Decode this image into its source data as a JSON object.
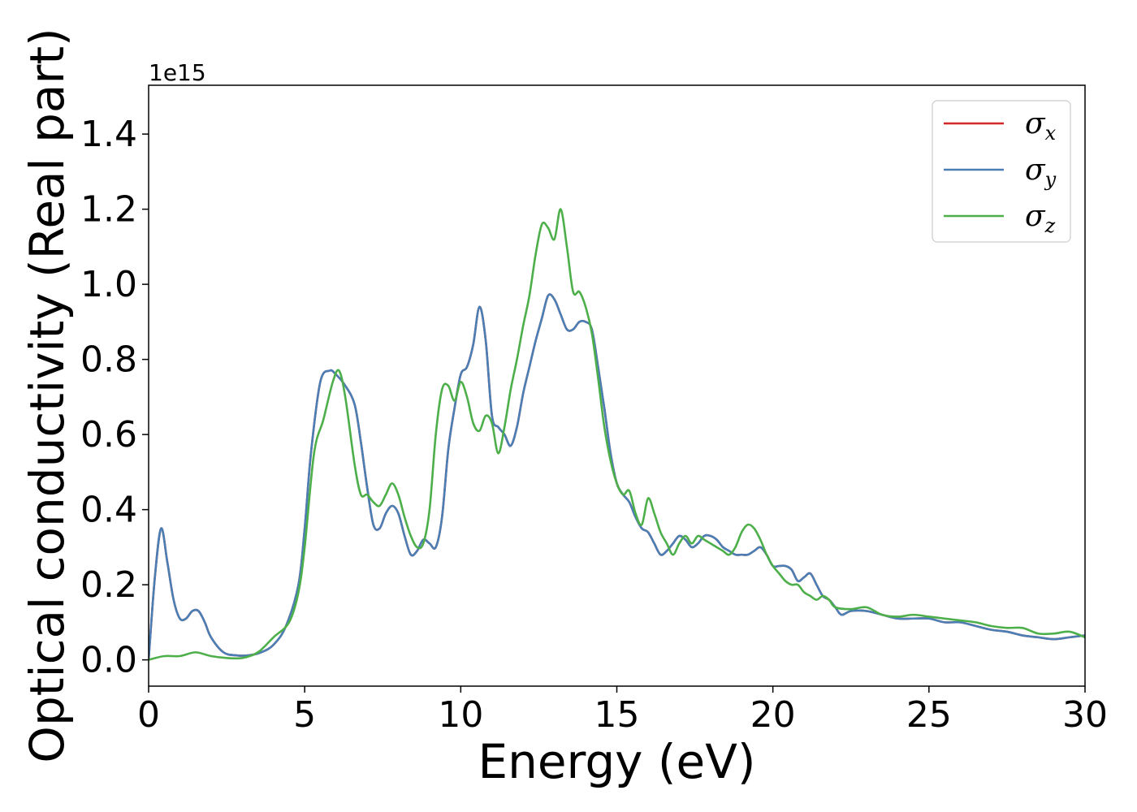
{
  "chart_data": {
    "type": "line",
    "title": "",
    "xlabel": "Energy (eV)",
    "ylabel": "Optical conductivity (Real part)",
    "y_offset_label": "1e15",
    "xlim": [
      0,
      30
    ],
    "ylim": [
      -0.07,
      1.53
    ],
    "x_ticks": [
      0,
      5,
      10,
      15,
      20,
      25,
      30
    ],
    "y_ticks": [
      0.0,
      0.2,
      0.4,
      0.6,
      0.8,
      1.0,
      1.2,
      1.4
    ],
    "x_tick_labels": [
      "0",
      "5",
      "10",
      "15",
      "20",
      "25",
      "30"
    ],
    "y_tick_labels": [
      "0.0",
      "0.2",
      "0.4",
      "0.6",
      "0.8",
      "1.0",
      "1.2",
      "1.4"
    ],
    "grid": false,
    "legend_position": "top-right",
    "series": [
      {
        "name": "σx",
        "legend_symbol": "σ",
        "legend_sub": "x",
        "color": "#d62728",
        "x": [
          0,
          0.2,
          0.4,
          0.6,
          0.8,
          1.0,
          1.2,
          1.4,
          1.6,
          1.8,
          2.0,
          2.4,
          2.8,
          3.2,
          3.6,
          4.0,
          4.4,
          4.8,
          5.0,
          5.2,
          5.5,
          5.8,
          6.0,
          6.3,
          6.6,
          6.8,
          7.0,
          7.2,
          7.4,
          7.6,
          7.8,
          8.0,
          8.2,
          8.4,
          8.6,
          8.8,
          9.0,
          9.2,
          9.4,
          9.6,
          9.8,
          10.0,
          10.2,
          10.4,
          10.6,
          10.8,
          11.0,
          11.2,
          11.4,
          11.6,
          11.8,
          12.0,
          12.2,
          12.4,
          12.6,
          12.8,
          13.0,
          13.2,
          13.4,
          13.6,
          13.8,
          14.0,
          14.2,
          14.4,
          14.6,
          14.8,
          15.0,
          15.2,
          15.4,
          15.6,
          15.8,
          16.0,
          16.2,
          16.4,
          16.6,
          16.8,
          17.0,
          17.2,
          17.4,
          17.6,
          17.8,
          18.0,
          18.2,
          18.4,
          18.6,
          18.8,
          19.0,
          19.2,
          19.4,
          19.6,
          19.8,
          20.0,
          20.2,
          20.4,
          20.6,
          20.8,
          21.0,
          21.2,
          21.4,
          21.6,
          21.8,
          22.0,
          22.2,
          22.5,
          23.0,
          23.5,
          24.0,
          24.5,
          25.0,
          25.5,
          26.0,
          26.5,
          27.0,
          27.5,
          28.0,
          28.5,
          29.0,
          29.5,
          30.0
        ],
        "y": [
          0.0,
          0.22,
          0.35,
          0.26,
          0.16,
          0.11,
          0.11,
          0.13,
          0.13,
          0.1,
          0.06,
          0.02,
          0.012,
          0.012,
          0.02,
          0.04,
          0.09,
          0.2,
          0.35,
          0.55,
          0.74,
          0.77,
          0.76,
          0.73,
          0.68,
          0.58,
          0.46,
          0.36,
          0.35,
          0.39,
          0.41,
          0.39,
          0.33,
          0.28,
          0.29,
          0.32,
          0.31,
          0.3,
          0.38,
          0.56,
          0.67,
          0.76,
          0.78,
          0.84,
          0.94,
          0.85,
          0.65,
          0.62,
          0.6,
          0.57,
          0.62,
          0.71,
          0.78,
          0.85,
          0.91,
          0.97,
          0.96,
          0.92,
          0.88,
          0.88,
          0.9,
          0.9,
          0.88,
          0.78,
          0.67,
          0.55,
          0.47,
          0.44,
          0.42,
          0.38,
          0.35,
          0.34,
          0.31,
          0.28,
          0.29,
          0.31,
          0.33,
          0.32,
          0.3,
          0.31,
          0.33,
          0.33,
          0.32,
          0.3,
          0.29,
          0.28,
          0.28,
          0.28,
          0.29,
          0.3,
          0.28,
          0.25,
          0.25,
          0.25,
          0.24,
          0.21,
          0.22,
          0.23,
          0.2,
          0.17,
          0.16,
          0.14,
          0.12,
          0.13,
          0.13,
          0.12,
          0.11,
          0.11,
          0.11,
          0.1,
          0.1,
          0.09,
          0.08,
          0.075,
          0.065,
          0.06,
          0.055,
          0.06,
          0.065
        ]
      },
      {
        "name": "σy",
        "legend_symbol": "σ",
        "legend_sub": "y",
        "color": "#4a7fb5",
        "x": [
          0,
          0.2,
          0.4,
          0.6,
          0.8,
          1.0,
          1.2,
          1.4,
          1.6,
          1.8,
          2.0,
          2.4,
          2.8,
          3.2,
          3.6,
          4.0,
          4.4,
          4.8,
          5.0,
          5.2,
          5.5,
          5.8,
          6.0,
          6.3,
          6.6,
          6.8,
          7.0,
          7.2,
          7.4,
          7.6,
          7.8,
          8.0,
          8.2,
          8.4,
          8.6,
          8.8,
          9.0,
          9.2,
          9.4,
          9.6,
          9.8,
          10.0,
          10.2,
          10.4,
          10.6,
          10.8,
          11.0,
          11.2,
          11.4,
          11.6,
          11.8,
          12.0,
          12.2,
          12.4,
          12.6,
          12.8,
          13.0,
          13.2,
          13.4,
          13.6,
          13.8,
          14.0,
          14.2,
          14.4,
          14.6,
          14.8,
          15.0,
          15.2,
          15.4,
          15.6,
          15.8,
          16.0,
          16.2,
          16.4,
          16.6,
          16.8,
          17.0,
          17.2,
          17.4,
          17.6,
          17.8,
          18.0,
          18.2,
          18.4,
          18.6,
          18.8,
          19.0,
          19.2,
          19.4,
          19.6,
          19.8,
          20.0,
          20.2,
          20.4,
          20.6,
          20.8,
          21.0,
          21.2,
          21.4,
          21.6,
          21.8,
          22.0,
          22.2,
          22.5,
          23.0,
          23.5,
          24.0,
          24.5,
          25.0,
          25.5,
          26.0,
          26.5,
          27.0,
          27.5,
          28.0,
          28.5,
          29.0,
          29.5,
          30.0
        ],
        "y": [
          0.0,
          0.22,
          0.35,
          0.26,
          0.16,
          0.11,
          0.11,
          0.13,
          0.13,
          0.1,
          0.06,
          0.02,
          0.012,
          0.012,
          0.02,
          0.04,
          0.09,
          0.2,
          0.35,
          0.55,
          0.74,
          0.77,
          0.76,
          0.73,
          0.68,
          0.58,
          0.46,
          0.36,
          0.35,
          0.39,
          0.41,
          0.39,
          0.33,
          0.28,
          0.29,
          0.32,
          0.31,
          0.3,
          0.38,
          0.56,
          0.67,
          0.76,
          0.78,
          0.84,
          0.94,
          0.85,
          0.65,
          0.62,
          0.6,
          0.57,
          0.62,
          0.71,
          0.78,
          0.85,
          0.91,
          0.97,
          0.96,
          0.92,
          0.88,
          0.88,
          0.9,
          0.9,
          0.88,
          0.78,
          0.67,
          0.55,
          0.47,
          0.44,
          0.42,
          0.38,
          0.35,
          0.34,
          0.31,
          0.28,
          0.29,
          0.31,
          0.33,
          0.32,
          0.3,
          0.31,
          0.33,
          0.33,
          0.32,
          0.3,
          0.29,
          0.28,
          0.28,
          0.28,
          0.29,
          0.3,
          0.28,
          0.25,
          0.25,
          0.25,
          0.24,
          0.21,
          0.22,
          0.23,
          0.2,
          0.17,
          0.16,
          0.14,
          0.12,
          0.13,
          0.13,
          0.12,
          0.11,
          0.11,
          0.11,
          0.1,
          0.1,
          0.09,
          0.08,
          0.075,
          0.065,
          0.06,
          0.055,
          0.06,
          0.065
        ]
      },
      {
        "name": "σz",
        "legend_symbol": "σ",
        "legend_sub": "z",
        "color": "#4daf4a",
        "x": [
          0,
          0.5,
          1.0,
          1.5,
          2.0,
          2.5,
          3.0,
          3.5,
          4.0,
          4.5,
          4.8,
          5.0,
          5.3,
          5.6,
          5.9,
          6.1,
          6.3,
          6.6,
          6.8,
          7.0,
          7.2,
          7.4,
          7.6,
          7.8,
          8.0,
          8.2,
          8.4,
          8.6,
          8.8,
          9.0,
          9.2,
          9.4,
          9.6,
          9.8,
          10.0,
          10.2,
          10.4,
          10.6,
          10.8,
          11.0,
          11.2,
          11.4,
          11.6,
          11.8,
          12.0,
          12.2,
          12.4,
          12.6,
          12.8,
          13.0,
          13.2,
          13.4,
          13.6,
          13.8,
          14.0,
          14.2,
          14.4,
          14.6,
          14.8,
          15.0,
          15.2,
          15.4,
          15.6,
          15.8,
          16.0,
          16.2,
          16.4,
          16.6,
          16.8,
          17.0,
          17.2,
          17.4,
          17.6,
          17.8,
          18.0,
          18.2,
          18.4,
          18.6,
          18.8,
          19.0,
          19.2,
          19.4,
          19.6,
          19.8,
          20.0,
          20.2,
          20.4,
          20.6,
          20.8,
          21.0,
          21.2,
          21.4,
          21.6,
          21.8,
          22.0,
          22.5,
          23.0,
          23.5,
          24.0,
          24.5,
          25.0,
          25.5,
          26.0,
          26.5,
          27.0,
          27.5,
          28.0,
          28.5,
          29.0,
          29.5,
          30.0
        ],
        "y": [
          0.0,
          0.01,
          0.01,
          0.02,
          0.01,
          0.005,
          0.005,
          0.02,
          0.06,
          0.1,
          0.18,
          0.3,
          0.55,
          0.64,
          0.74,
          0.77,
          0.7,
          0.52,
          0.44,
          0.44,
          0.42,
          0.41,
          0.44,
          0.47,
          0.44,
          0.38,
          0.33,
          0.3,
          0.31,
          0.4,
          0.6,
          0.72,
          0.73,
          0.69,
          0.74,
          0.7,
          0.63,
          0.61,
          0.65,
          0.63,
          0.55,
          0.62,
          0.72,
          0.8,
          0.89,
          0.97,
          1.08,
          1.16,
          1.15,
          1.12,
          1.2,
          1.1,
          0.98,
          0.98,
          0.94,
          0.87,
          0.75,
          0.62,
          0.53,
          0.47,
          0.44,
          0.45,
          0.39,
          0.36,
          0.43,
          0.39,
          0.34,
          0.31,
          0.28,
          0.31,
          0.33,
          0.31,
          0.33,
          0.32,
          0.31,
          0.3,
          0.29,
          0.28,
          0.3,
          0.34,
          0.36,
          0.35,
          0.32,
          0.28,
          0.25,
          0.23,
          0.21,
          0.2,
          0.2,
          0.18,
          0.17,
          0.16,
          0.17,
          0.16,
          0.14,
          0.135,
          0.14,
          0.12,
          0.115,
          0.12,
          0.115,
          0.11,
          0.105,
          0.1,
          0.09,
          0.085,
          0.085,
          0.07,
          0.07,
          0.075,
          0.06
        ]
      }
    ]
  }
}
